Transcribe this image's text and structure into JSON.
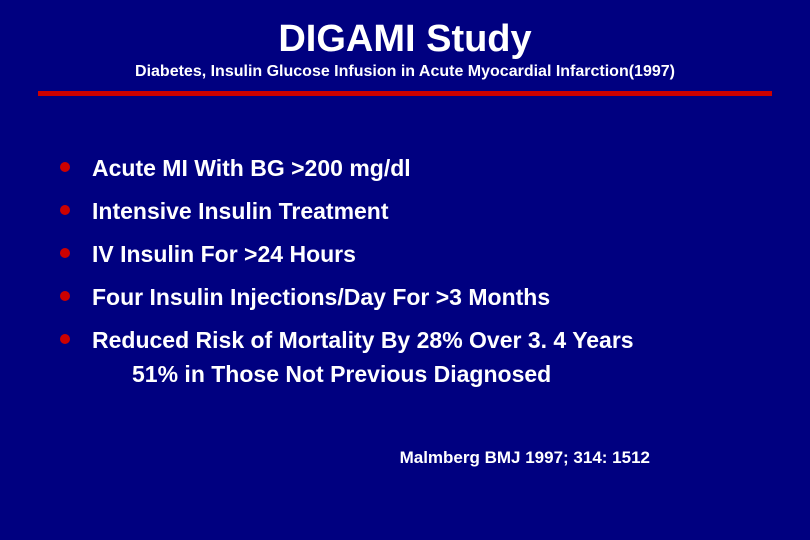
{
  "colors": {
    "background": "#000080",
    "text": "#ffffff",
    "divider": "#cc0000",
    "bullet": "#cc0000"
  },
  "typography": {
    "title_fontsize": 38,
    "subtitle_fontsize": 16,
    "body_fontsize": 23,
    "citation_fontsize": 17,
    "font_family": "Arial",
    "font_weight": "bold"
  },
  "title": "DIGAMI Study",
  "subtitle": "Diabetes, Insulin Glucose Infusion in Acute Myocardial Infarction(1997)",
  "bullets": [
    "Acute MI With BG >200 mg/dl",
    "Intensive Insulin Treatment",
    "IV Insulin For >24 Hours",
    "Four Insulin Injections/Day For >3 Months",
    "Reduced Risk of Mortality By 28% Over 3. 4 Years"
  ],
  "sub_line": "51% in Those Not Previous Diagnosed",
  "citation": "Malmberg BMJ 1997; 314: 1512"
}
